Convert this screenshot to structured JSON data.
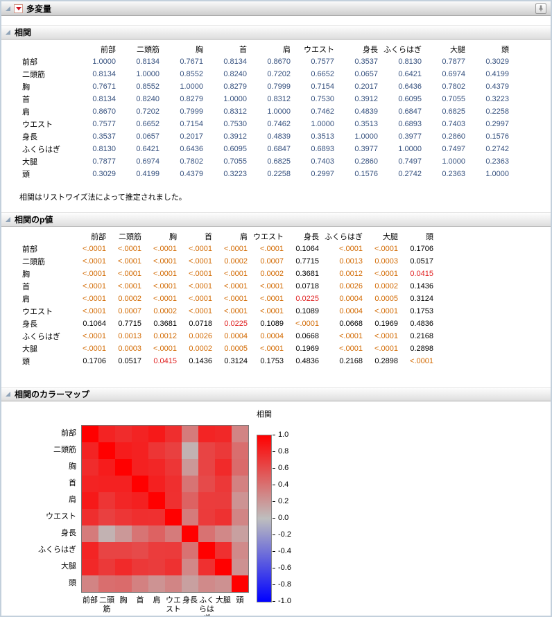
{
  "window": {
    "title": "多変量"
  },
  "sections": {
    "correlation": {
      "title": "相関",
      "note": "相関はリストワイズ法によって推定されました。",
      "variables": [
        "前部",
        "二頭筋",
        "胸",
        "首",
        "肩",
        "ウエスト",
        "身長",
        "ふくらはぎ",
        "大腿",
        "頭"
      ],
      "matrix": [
        [
          "1.0000",
          "0.8134",
          "0.7671",
          "0.8134",
          "0.8670",
          "0.7577",
          "0.3537",
          "0.8130",
          "0.7877",
          "0.3029"
        ],
        [
          "0.8134",
          "1.0000",
          "0.8552",
          "0.8240",
          "0.7202",
          "0.6652",
          "0.0657",
          "0.6421",
          "0.6974",
          "0.4199"
        ],
        [
          "0.7671",
          "0.8552",
          "1.0000",
          "0.8279",
          "0.7999",
          "0.7154",
          "0.2017",
          "0.6436",
          "0.7802",
          "0.4379"
        ],
        [
          "0.8134",
          "0.8240",
          "0.8279",
          "1.0000",
          "0.8312",
          "0.7530",
          "0.3912",
          "0.6095",
          "0.7055",
          "0.3223"
        ],
        [
          "0.8670",
          "0.7202",
          "0.7999",
          "0.8312",
          "1.0000",
          "0.7462",
          "0.4839",
          "0.6847",
          "0.6825",
          "0.2258"
        ],
        [
          "0.7577",
          "0.6652",
          "0.7154",
          "0.7530",
          "0.7462",
          "1.0000",
          "0.3513",
          "0.6893",
          "0.7403",
          "0.2997"
        ],
        [
          "0.3537",
          "0.0657",
          "0.2017",
          "0.3912",
          "0.4839",
          "0.3513",
          "1.0000",
          "0.3977",
          "0.2860",
          "0.1576"
        ],
        [
          "0.8130",
          "0.6421",
          "0.6436",
          "0.6095",
          "0.6847",
          "0.6893",
          "0.3977",
          "1.0000",
          "0.7497",
          "0.2742"
        ],
        [
          "0.7877",
          "0.6974",
          "0.7802",
          "0.7055",
          "0.6825",
          "0.7403",
          "0.2860",
          "0.7497",
          "1.0000",
          "0.2363"
        ],
        [
          "0.3029",
          "0.4199",
          "0.4379",
          "0.3223",
          "0.2258",
          "0.2997",
          "0.1576",
          "0.2742",
          "0.2363",
          "1.0000"
        ]
      ]
    },
    "pvalues": {
      "title": "相関のp値",
      "matrix": [
        [
          "<.0001",
          "<.0001",
          "<.0001",
          "<.0001",
          "<.0001",
          "<.0001",
          "0.1064",
          "<.0001",
          "<.0001",
          "0.1706"
        ],
        [
          "<.0001",
          "<.0001",
          "<.0001",
          "<.0001",
          "0.0002",
          "0.0007",
          "0.7715",
          "0.0013",
          "0.0003",
          "0.0517"
        ],
        [
          "<.0001",
          "<.0001",
          "<.0001",
          "<.0001",
          "<.0001",
          "0.0002",
          "0.3681",
          "0.0012",
          "<.0001",
          "0.0415"
        ],
        [
          "<.0001",
          "<.0001",
          "<.0001",
          "<.0001",
          "<.0001",
          "<.0001",
          "0.0718",
          "0.0026",
          "0.0002",
          "0.1436"
        ],
        [
          "<.0001",
          "0.0002",
          "<.0001",
          "<.0001",
          "<.0001",
          "<.0001",
          "0.0225",
          "0.0004",
          "0.0005",
          "0.3124"
        ],
        [
          "<.0001",
          "0.0007",
          "0.0002",
          "<.0001",
          "<.0001",
          "<.0001",
          "0.1089",
          "0.0004",
          "<.0001",
          "0.1753"
        ],
        [
          "0.1064",
          "0.7715",
          "0.3681",
          "0.0718",
          "0.0225",
          "0.1089",
          "<.0001",
          "0.0668",
          "0.1969",
          "0.4836"
        ],
        [
          "<.0001",
          "0.0013",
          "0.0012",
          "0.0026",
          "0.0004",
          "0.0004",
          "0.0668",
          "<.0001",
          "<.0001",
          "0.2168"
        ],
        [
          "<.0001",
          "0.0003",
          "<.0001",
          "0.0002",
          "0.0005",
          "<.0001",
          "0.1969",
          "<.0001",
          "<.0001",
          "0.2898"
        ],
        [
          "0.1706",
          "0.0517",
          "0.0415",
          "0.1436",
          "0.3124",
          "0.1753",
          "0.4836",
          "0.2168",
          "0.2898",
          "<.0001"
        ]
      ]
    },
    "colormap": {
      "title": "相関のカラーマップ",
      "legend_title": "相関",
      "legend_ticks": [
        "1.0",
        "0.8",
        "0.6",
        "0.4",
        "0.2",
        "0.0",
        "-0.2",
        "-0.4",
        "-0.6",
        "-0.8",
        "-1.0"
      ]
    }
  },
  "colors": {
    "correlation_text": "#35507e",
    "p_value_orange": "#d26900",
    "p_value_red": "#e02020",
    "heat_positive": "#ff0000",
    "heat_zero": "#bebebe",
    "heat_negative": "#0000ff"
  }
}
